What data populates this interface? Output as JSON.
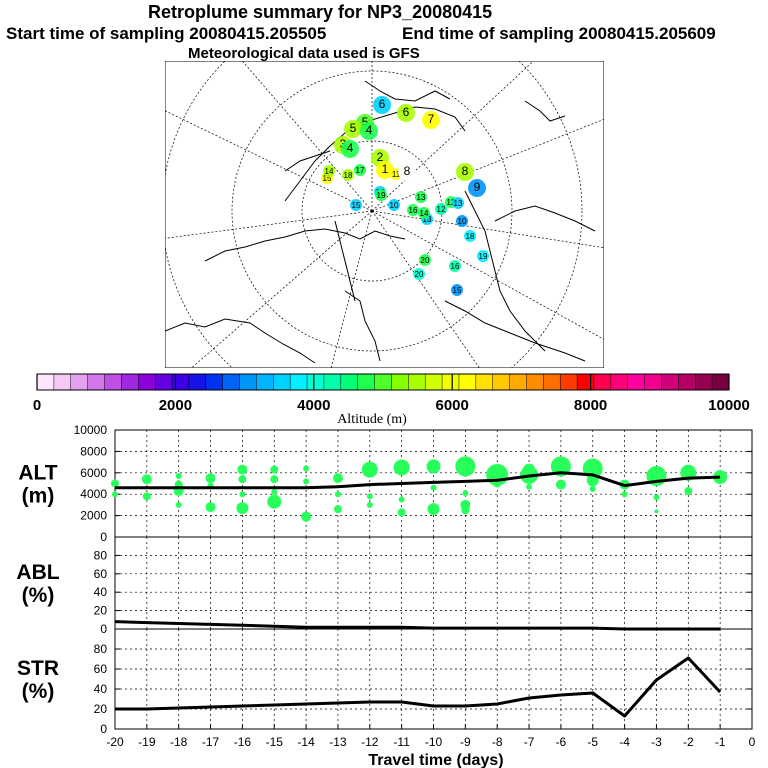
{
  "header": {
    "title": "Retroplume summary for NP3_20080415",
    "start_time": "Start time of sampling 20080415.205505",
    "end_time": "End time of sampling 20080415.205609",
    "meteo": "Meteorological data used is GFS"
  },
  "colorbar": {
    "label": "Altitude (m)",
    "ticks": [
      "0",
      "2000",
      "4000",
      "6000",
      "8000",
      "10000"
    ],
    "colors": [
      "#ffe6ff",
      "#f5c8f5",
      "#e6a0f0",
      "#d278eb",
      "#be50e6",
      "#a028e1",
      "#8c00dc",
      "#6400e1",
      "#3c00e6",
      "#1414eb",
      "#0032f0",
      "#0064f5",
      "#0096fa",
      "#00b4ff",
      "#00d2ff",
      "#00f0ff",
      "#00ffd2",
      "#00ffaa",
      "#00ff78",
      "#1eff50",
      "#50ff28",
      "#82ff00",
      "#aaff00",
      "#d2ff00",
      "#f0ff00",
      "#ffff00",
      "#ffe100",
      "#ffc800",
      "#ffaa00",
      "#ff8c00",
      "#ff6e00",
      "#ff3c00",
      "#ff0000",
      "#ff0050",
      "#ff0078",
      "#ff00a0",
      "#f0008c",
      "#d20078",
      "#b40064",
      "#960050",
      "#780040"
    ]
  },
  "map_labels": [
    {
      "t": "6",
      "c": "#00d2ff"
    },
    {
      "t": "6",
      "c": "#aaff00"
    },
    {
      "t": "7",
      "c": "#ffff00"
    },
    {
      "t": "5",
      "c": "#50ff28"
    },
    {
      "t": "5",
      "c": "#aaff00"
    },
    {
      "t": "4",
      "c": "#1eff50"
    },
    {
      "t": "3",
      "c": "#aaff00"
    },
    {
      "t": "4",
      "c": "#1eff50"
    },
    {
      "t": "2",
      "c": "#aaff00"
    },
    {
      "t": "1",
      "c": "#ffff00"
    },
    {
      "t": "8",
      "c": "#aaff00"
    },
    {
      "t": "9",
      "c": "#0096fa"
    },
    {
      "t": "10",
      "c": "#0096fa"
    },
    {
      "t": "11",
      "c": "#ffff00"
    },
    {
      "t": "12",
      "c": "#1eff50"
    },
    {
      "t": "13",
      "c": "#00d2ff"
    },
    {
      "t": "15",
      "c": "#00d2ff"
    },
    {
      "t": "16",
      "c": "#1eff50"
    },
    {
      "t": "17",
      "c": "#00d2ff"
    },
    {
      "t": "18",
      "c": "#00f0ff"
    },
    {
      "t": "19",
      "c": "#00f0ff"
    },
    {
      "t": "20",
      "c": "#00ffd2"
    },
    {
      "t": "20",
      "c": "#1eff50"
    },
    {
      "t": "16",
      "c": "#00ffaa"
    },
    {
      "t": "12",
      "c": "#00ffaa"
    },
    {
      "t": "13",
      "c": "#00d2ff"
    },
    {
      "t": "14",
      "c": "#1eff50"
    },
    {
      "t": "15",
      "c": "#ffff00"
    },
    {
      "t": "10",
      "c": "#00d2ff"
    },
    {
      "t": "19",
      "c": "#1eff50"
    },
    {
      "t": "18",
      "c": "#aaff00"
    },
    {
      "t": "14",
      "c": "#aaff00"
    },
    {
      "t": "17",
      "c": "#1eff50"
    },
    {
      "t": "8",
      "c": "#ffffff"
    },
    {
      "t": "13",
      "c": "#1eff50"
    },
    {
      "t": "15",
      "c": "#0096fa"
    }
  ],
  "chart_data": [
    {
      "type": "line",
      "name": "ALT",
      "ylabel": [
        "ALT",
        "(m)"
      ],
      "ylim": [
        0,
        10000
      ],
      "yticks": [
        "0",
        "2000",
        "4000",
        "6000",
        "8000",
        "10000"
      ],
      "x": [
        -20,
        -19,
        -18,
        -17,
        -16,
        -15,
        -14,
        -13,
        -12,
        -11,
        -10,
        -9,
        -8,
        -7,
        -6,
        -5,
        -4,
        -3,
        -2,
        -1
      ],
      "values": [
        4600,
        4600,
        4600,
        4600,
        4600,
        4600,
        4600,
        4700,
        4900,
        5000,
        5100,
        5200,
        5300,
        5700,
        6000,
        5800,
        4800,
        5200,
        5500,
        5600
      ],
      "scatter": [
        {
          "x": -20,
          "y": 5000,
          "s": 4
        },
        {
          "x": -20,
          "y": 4000,
          "s": 3
        },
        {
          "x": -19,
          "y": 5400,
          "s": 5
        },
        {
          "x": -19,
          "y": 3800,
          "s": 4
        },
        {
          "x": -18,
          "y": 5700,
          "s": 3
        },
        {
          "x": -18,
          "y": 4900,
          "s": 4
        },
        {
          "x": -18,
          "y": 4300,
          "s": 5
        },
        {
          "x": -18,
          "y": 3000,
          "s": 3
        },
        {
          "x": -17,
          "y": 5500,
          "s": 5
        },
        {
          "x": -17,
          "y": 4800,
          "s": 3
        },
        {
          "x": -17,
          "y": 2800,
          "s": 5
        },
        {
          "x": -16,
          "y": 6300,
          "s": 5
        },
        {
          "x": -16,
          "y": 5400,
          "s": 4
        },
        {
          "x": -16,
          "y": 4000,
          "s": 3
        },
        {
          "x": -16,
          "y": 2700,
          "s": 6
        },
        {
          "x": -15,
          "y": 6300,
          "s": 4
        },
        {
          "x": -15,
          "y": 5400,
          "s": 4
        },
        {
          "x": -15,
          "y": 4200,
          "s": 3
        },
        {
          "x": -15,
          "y": 3300,
          "s": 7
        },
        {
          "x": -14,
          "y": 6400,
          "s": 3
        },
        {
          "x": -14,
          "y": 5200,
          "s": 3
        },
        {
          "x": -14,
          "y": 1900,
          "s": 5
        },
        {
          "x": -13,
          "y": 5500,
          "s": 5
        },
        {
          "x": -13,
          "y": 4000,
          "s": 3
        },
        {
          "x": -13,
          "y": 2600,
          "s": 4
        },
        {
          "x": -12,
          "y": 6300,
          "s": 8
        },
        {
          "x": -12,
          "y": 3800,
          "s": 3
        },
        {
          "x": -12,
          "y": 3000,
          "s": 3
        },
        {
          "x": -11,
          "y": 6500,
          "s": 8
        },
        {
          "x": -11,
          "y": 3500,
          "s": 3
        },
        {
          "x": -11,
          "y": 2300,
          "s": 4
        },
        {
          "x": -10,
          "y": 6600,
          "s": 7
        },
        {
          "x": -10,
          "y": 4600,
          "s": 3
        },
        {
          "x": -10,
          "y": 2600,
          "s": 6
        },
        {
          "x": -9,
          "y": 6600,
          "s": 10
        },
        {
          "x": -9,
          "y": 4100,
          "s": 3
        },
        {
          "x": -9,
          "y": 3000,
          "s": 5
        },
        {
          "x": -9,
          "y": 2500,
          "s": 4
        },
        {
          "x": -8,
          "y": 5800,
          "s": 11
        },
        {
          "x": -8,
          "y": 5000,
          "s": 4
        },
        {
          "x": -7,
          "y": 6300,
          "s": 6
        },
        {
          "x": -7,
          "y": 5800,
          "s": 9
        },
        {
          "x": -7,
          "y": 4700,
          "s": 3
        },
        {
          "x": -6,
          "y": 6600,
          "s": 10
        },
        {
          "x": -6,
          "y": 4900,
          "s": 5
        },
        {
          "x": -5,
          "y": 6400,
          "s": 10
        },
        {
          "x": -5,
          "y": 5300,
          "s": 6
        },
        {
          "x": -5,
          "y": 4500,
          "s": 3
        },
        {
          "x": -4,
          "y": 4900,
          "s": 5
        },
        {
          "x": -4,
          "y": 4000,
          "s": 3
        },
        {
          "x": -3,
          "y": 5700,
          "s": 10
        },
        {
          "x": -3,
          "y": 3700,
          "s": 3
        },
        {
          "x": -3,
          "y": 2400,
          "s": 2
        },
        {
          "x": -2,
          "y": 6000,
          "s": 8
        },
        {
          "x": -2,
          "y": 4300,
          "s": 4
        },
        {
          "x": -1,
          "y": 5600,
          "s": 7
        }
      ]
    },
    {
      "type": "line",
      "name": "ABL",
      "ylabel": [
        "ABL",
        "(%)"
      ],
      "ylim": [
        0,
        100
      ],
      "yticks": [
        "0",
        "20",
        "40",
        "60",
        "80"
      ],
      "x": [
        -20,
        -19,
        -18,
        -17,
        -16,
        -15,
        -14,
        -13,
        -12,
        -11,
        -10,
        -9,
        -8,
        -7,
        -6,
        -5,
        -4,
        -3,
        -2,
        -1
      ],
      "values": [
        8,
        7,
        6,
        5,
        4,
        3,
        2,
        2,
        2,
        2,
        1,
        1,
        1,
        1,
        1,
        1,
        0,
        0,
        0,
        0
      ]
    },
    {
      "type": "line",
      "name": "STR",
      "ylabel": [
        "STR",
        "(%)"
      ],
      "ylim": [
        0,
        100
      ],
      "yticks": [
        "0",
        "20",
        "40",
        "60",
        "80"
      ],
      "x": [
        -20,
        -19,
        -18,
        -17,
        -16,
        -15,
        -14,
        -13,
        -12,
        -11,
        -10,
        -9,
        -8,
        -7,
        -6,
        -5,
        -4,
        -3,
        -2,
        -1
      ],
      "values": [
        20,
        20,
        21,
        22,
        23,
        24,
        25,
        26,
        27,
        27,
        23,
        23,
        25,
        31,
        34,
        36,
        13,
        49,
        71,
        37
      ],
      "xticks": [
        "-20",
        "-19",
        "-18",
        "-17",
        "-16",
        "-15",
        "-14",
        "-13",
        "-12",
        "-11",
        "-10",
        "-9",
        "-8",
        "-7",
        "-6",
        "-5",
        "-4",
        "-3",
        "-2",
        "-1",
        "0"
      ],
      "xlabel": "Travel time (days)"
    }
  ]
}
